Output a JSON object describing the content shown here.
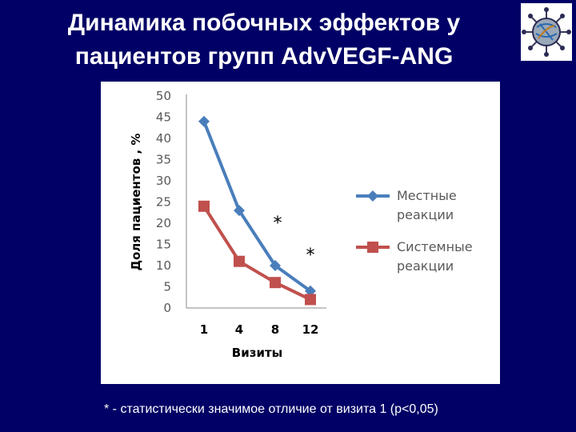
{
  "slide": {
    "title_line1": "Динамика побочных эффектов у",
    "title_line2": "пациентов групп AdvVEGF-ANG",
    "footnote": "* - статистически значимое отличие от визита 1 (p<0,05)"
  },
  "chart_data": {
    "type": "line",
    "xlabel": "Визиты",
    "ylabel": "Доля пациентов , %",
    "categories": [
      "1",
      "4",
      "8",
      "12"
    ],
    "ylim": [
      0,
      50
    ],
    "yticks": [
      0,
      5,
      10,
      15,
      20,
      25,
      30,
      35,
      40,
      45,
      50
    ],
    "grid": false,
    "legend_position": "right",
    "series": [
      {
        "name": "Местные реакции",
        "name_line1": "Местные",
        "name_line2": "реакции",
        "values": [
          44,
          23,
          10,
          4
        ],
        "color": "#4a7ebb",
        "marker": "diamond"
      },
      {
        "name": "Системные реакции",
        "name_line1": "Системные",
        "name_line2": "реакции",
        "values": [
          24,
          11,
          6,
          2
        ],
        "color": "#c0504d",
        "marker": "square"
      }
    ],
    "annotations": [
      "*",
      "*"
    ]
  }
}
